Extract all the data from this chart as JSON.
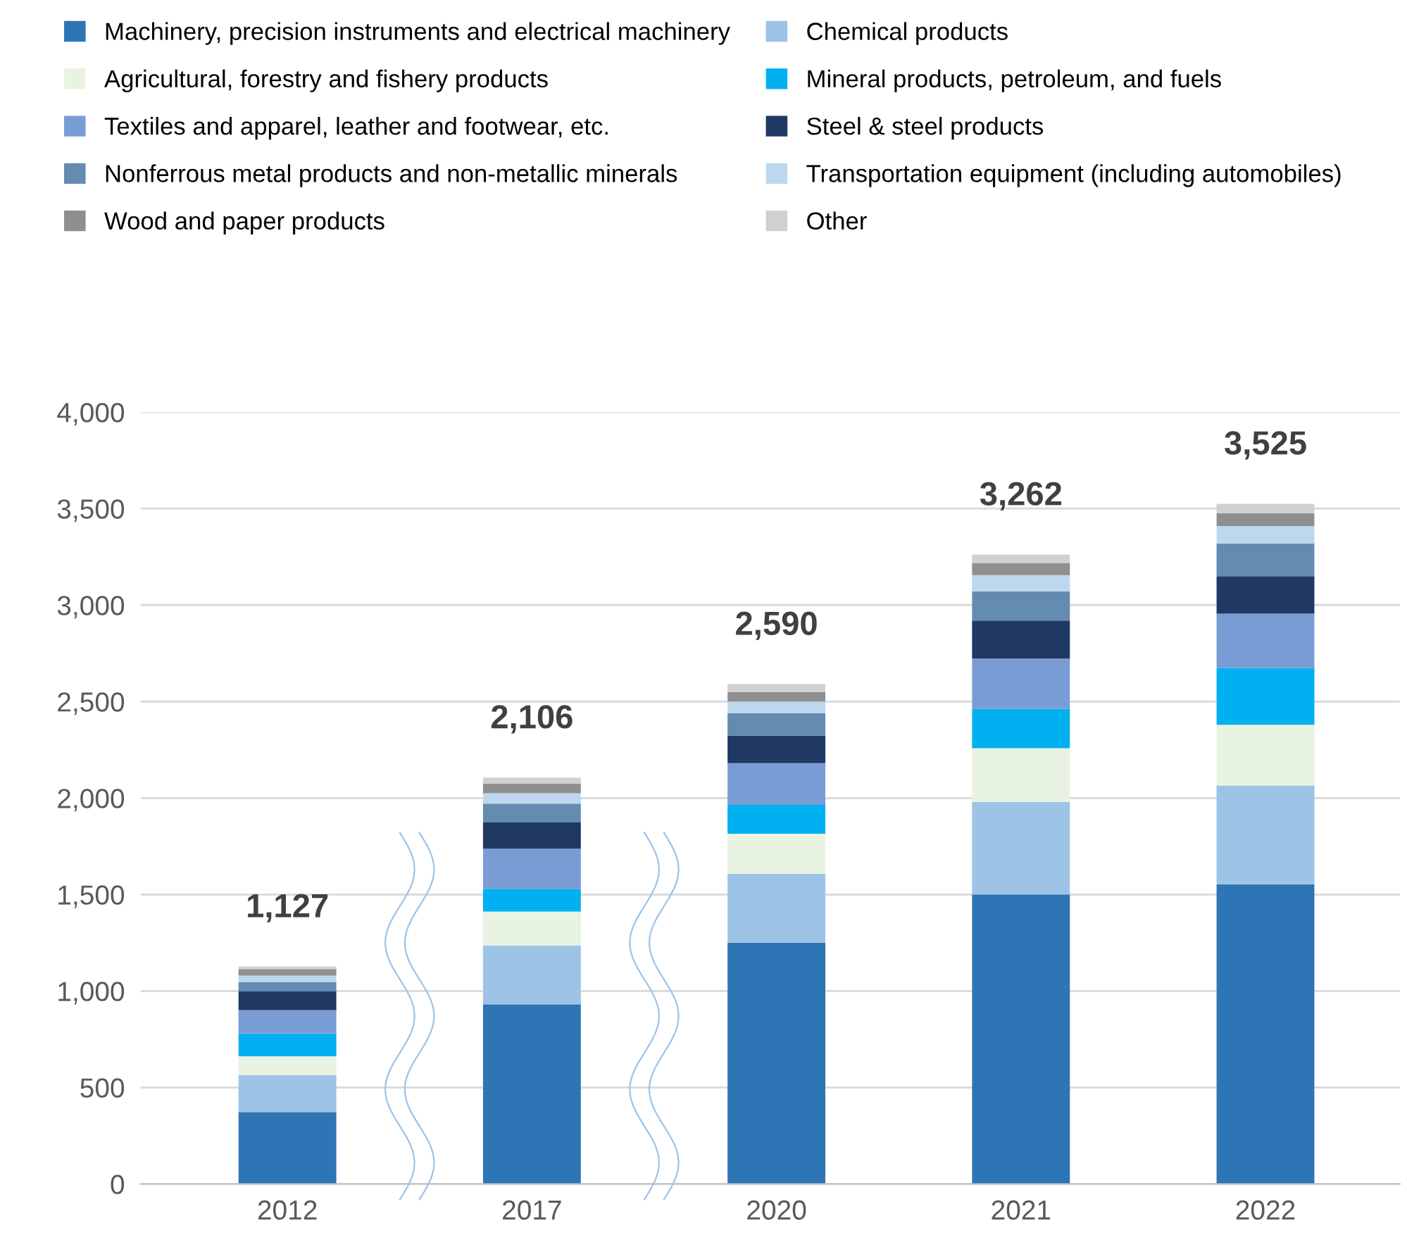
{
  "chart_data": {
    "type": "bar",
    "stacked": true,
    "categories": [
      "2012",
      "2017",
      "2020",
      "2021",
      "2022"
    ],
    "series": [
      {
        "name": "Machinery, precision instruments and electrical machinery",
        "color": "#2e75b6",
        "values": [
          373,
          931,
          1249,
          1500,
          1553
        ]
      },
      {
        "name": "Chemical products",
        "color": "#9dc3e6",
        "values": [
          190,
          306,
          359,
          479,
          512
        ]
      },
      {
        "name": "Agricultural, forestry and fishery products",
        "color": "#e9f3e2",
        "values": [
          99,
          175,
          207,
          279,
          315
        ]
      },
      {
        "name": "Mineral products, petroleum, and fuels",
        "color": "#00b0f0",
        "values": [
          118,
          117,
          150,
          205,
          293
        ]
      },
      {
        "name": "Textiles and apparel, leather and footwear, etc.",
        "color": "#7a9cd4",
        "values": [
          121,
          208,
          216,
          260,
          282
        ]
      },
      {
        "name": "Steel & steel products",
        "color": "#1f3864",
        "values": [
          97,
          136,
          143,
          197,
          195
        ]
      },
      {
        "name": "Nonferrous metal products and non-metallic minerals",
        "color": "#648bb0",
        "values": [
          49,
          98,
          115,
          151,
          169
        ]
      },
      {
        "name": "Transportation equipment (including automobiles)",
        "color": "#bdd7ee",
        "values": [
          33,
          54,
          61,
          84,
          91
        ]
      },
      {
        "name": "Wood and paper products",
        "color": "#8f8f8f",
        "values": [
          33,
          49,
          49,
          63,
          66
        ]
      },
      {
        "name": "Other",
        "color": "#d0d0d0",
        "values": [
          14,
          32,
          41,
          44,
          49
        ]
      }
    ],
    "totals": [
      "1,127",
      "2,106",
      "2,590",
      "3,262",
      "3,525"
    ],
    "ylim": [
      0,
      4000
    ],
    "yticks": [
      0,
      {
        "value": 500,
        "label": "500"
      },
      {
        "value": 1000,
        "label": "1,000"
      },
      {
        "value": 1500,
        "label": "1,500"
      },
      {
        "value": 2000,
        "label": "2,000"
      },
      {
        "value": 2500,
        "label": "2,500"
      },
      {
        "value": 3000,
        "label": "3,000"
      },
      {
        "value": 3500,
        "label": "3,500"
      },
      {
        "value": 4000,
        "label": "4,000"
      }
    ],
    "grid": "y",
    "legend": "top"
  }
}
